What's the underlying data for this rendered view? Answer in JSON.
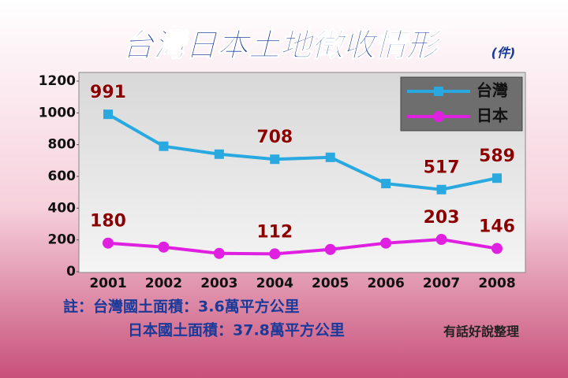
{
  "chart_data": {
    "type": "line",
    "title": "台灣日本土地徵收情形",
    "unit": "(件)",
    "categories": [
      "2001",
      "2002",
      "2003",
      "2004",
      "2005",
      "2006",
      "2007",
      "2008"
    ],
    "series": [
      {
        "name": "台灣",
        "color": "#2aa8e0",
        "marker": "square",
        "values": [
          991,
          790,
          740,
          708,
          720,
          555,
          517,
          589
        ],
        "labeled_points": [
          0,
          3,
          6,
          7
        ]
      },
      {
        "name": "日本",
        "color": "#e020e0",
        "marker": "circle",
        "values": [
          180,
          155,
          115,
          112,
          140,
          180,
          203,
          146
        ],
        "labeled_points": [
          0,
          3,
          6,
          7
        ]
      }
    ],
    "ylim": [
      0,
      1200
    ],
    "yticks": [
      0,
      200,
      400,
      600,
      800,
      1000,
      1200
    ],
    "grid": false,
    "legend": "upper right",
    "notes": [
      "註：台灣國土面積：3.6萬平方公里",
      "日本國土面積：37.8萬平方公里"
    ],
    "source": "有話好說整理"
  }
}
